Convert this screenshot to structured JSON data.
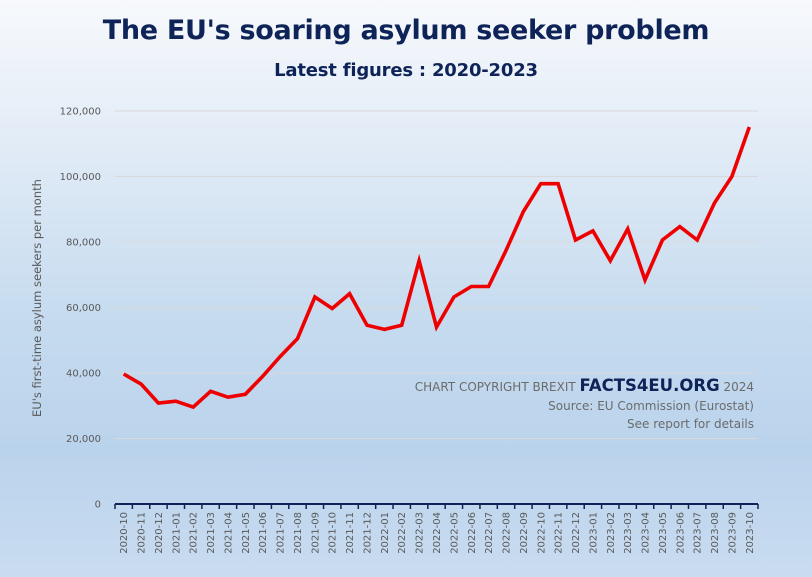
{
  "header": {
    "title": "The EU's soaring asylum seeker problem",
    "subtitle": "Latest figures : 2020-2023"
  },
  "annotation": {
    "copyright_prefix": "CHART COPYRIGHT BREXIT",
    "brand": "FACTS4EU.ORG",
    "year": "2024",
    "source": "Source: EU Commission (Eurostat)",
    "details": "See report for details"
  },
  "colors": {
    "line": "#ee0000",
    "title": "#0e2357",
    "axis": "#0e2357",
    "grid": "#d9d9d9"
  },
  "chart_data": {
    "type": "line",
    "title": "The EU's soaring asylum seeker problem",
    "subtitle": "Latest figures : 2020-2023",
    "xlabel": "",
    "ylabel": "EU's first-time asylum seekers per month",
    "ylim": [
      0,
      120000
    ],
    "yticks": [
      0,
      20000,
      40000,
      60000,
      80000,
      100000,
      120000
    ],
    "ytick_labels": [
      "0",
      "20,000",
      "40,000",
      "60,000",
      "80,000",
      "100,000",
      "120,000"
    ],
    "grid": true,
    "legend": "none",
    "categories": [
      "2020-10",
      "2020-11",
      "2020-12",
      "2021-01",
      "2021-02",
      "2021-03",
      "2021-04",
      "2021-05",
      "2021-06",
      "2021-07",
      "2021-08",
      "2021-09",
      "2021-10",
      "2021-11",
      "2021-12",
      "2022-01",
      "2022-02",
      "2022-03",
      "2022-04",
      "2022-05",
      "2022-06",
      "2022-07",
      "2022-08",
      "2022-09",
      "2022-10",
      "2022-11",
      "2022-12",
      "2023-01",
      "2023-02",
      "2023-03",
      "2023-04",
      "2023-05",
      "2023-06",
      "2023-07",
      "2023-08",
      "2023-09",
      "2023-10"
    ],
    "series": [
      {
        "name": "First-time asylum seekers",
        "values": [
          39700,
          36600,
          30800,
          31400,
          29600,
          34400,
          32600,
          33500,
          39000,
          45000,
          50500,
          63200,
          59700,
          64200,
          54600,
          53300,
          54600,
          74300,
          54000,
          63200,
          66400,
          66400,
          77400,
          89300,
          97800,
          97800,
          80600,
          83400,
          74300,
          84000,
          68400,
          80600,
          84700,
          80600,
          92000,
          100000,
          115100
        ]
      }
    ]
  }
}
